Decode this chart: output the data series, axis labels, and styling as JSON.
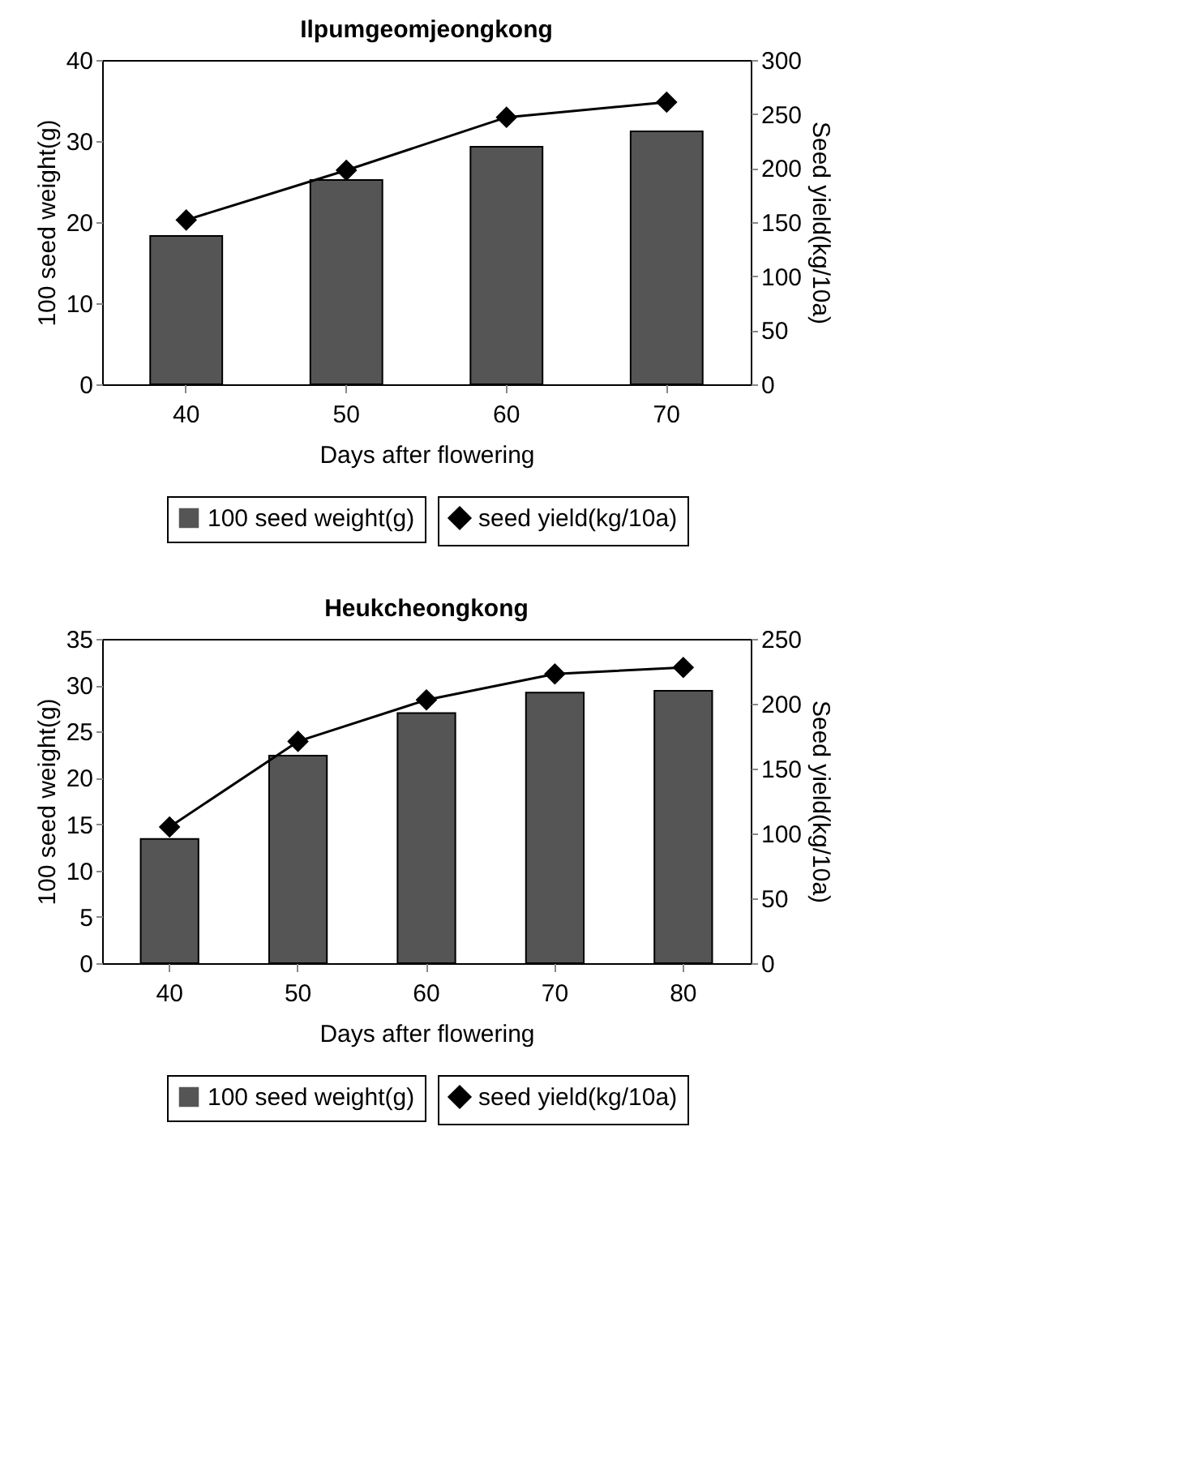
{
  "chart_data": [
    {
      "type": "bar",
      "title": "Ilpumgeomjeongkong",
      "xlabel": "Days after flowering",
      "ylabel": "100 seed weight(g)",
      "y2label": "Seed yield(kg/10a)",
      "categories": [
        "40",
        "50",
        "60",
        "70"
      ],
      "series": [
        {
          "name": "100 seed weight(g)",
          "type": "bar",
          "color": "#555555",
          "values": [
            18.3,
            25.2,
            29.3,
            31.2
          ]
        },
        {
          "name": "seed yield(kg/10a)",
          "type": "line",
          "axis": "y2",
          "color": "#000000",
          "values": [
            152,
            198,
            247,
            261
          ]
        }
      ],
      "ylim": [
        0,
        40
      ],
      "yticks": [
        0,
        10,
        20,
        30,
        40
      ],
      "y2lim": [
        0,
        300
      ],
      "y2ticks": [
        0,
        50,
        100,
        150,
        200,
        250,
        300
      ],
      "legend": "bottom",
      "marker": "diamond",
      "grid": false
    },
    {
      "type": "bar",
      "title": "Heukcheongkong",
      "xlabel": "Days after flowering",
      "ylabel": "100 seed weight(g)",
      "y2label": "Seed yield(kg/10a)",
      "categories": [
        "40",
        "50",
        "60",
        "70",
        "80"
      ],
      "series": [
        {
          "name": "100 seed weight(g)",
          "type": "bar",
          "color": "#555555",
          "values": [
            13.4,
            22.4,
            27.0,
            29.2,
            29.4
          ]
        },
        {
          "name": "seed yield(kg/10a)",
          "type": "line",
          "axis": "y2",
          "color": "#000000",
          "values": [
            105,
            171,
            203,
            223,
            228
          ]
        }
      ],
      "ylim": [
        0,
        35
      ],
      "yticks": [
        0,
        5,
        10,
        15,
        20,
        25,
        30,
        35
      ],
      "y2lim": [
        0,
        250
      ],
      "y2ticks": [
        0,
        50,
        100,
        150,
        200,
        250
      ],
      "legend": "bottom",
      "marker": "diamond",
      "grid": false
    }
  ]
}
